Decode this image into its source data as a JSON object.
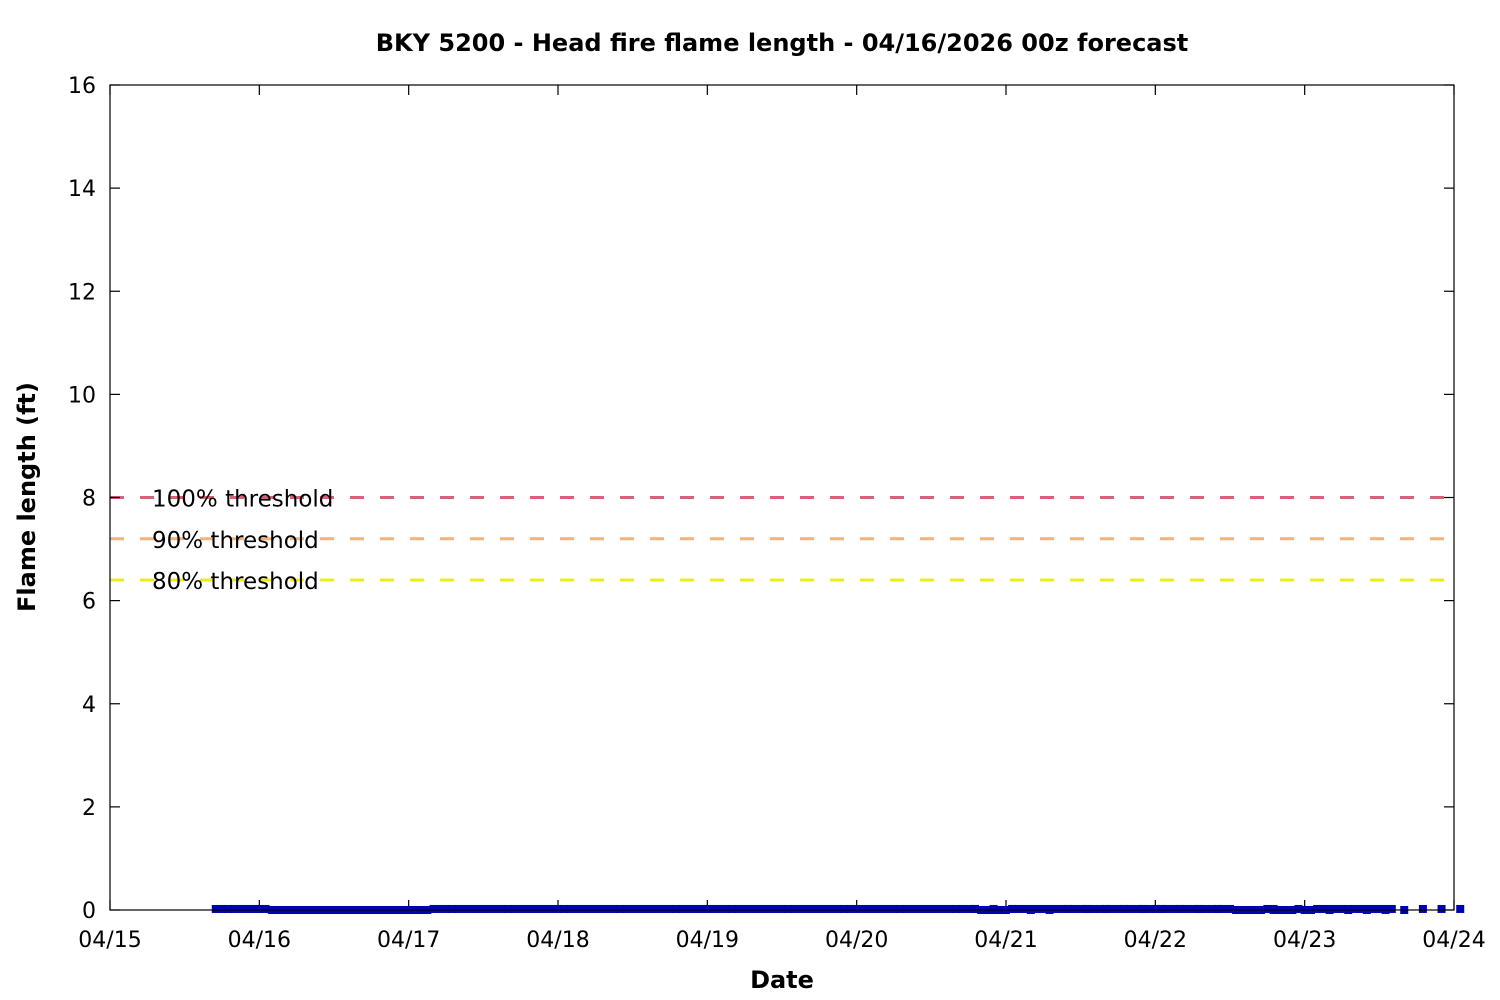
{
  "chart_data": {
    "type": "scatter",
    "title": "BKY 5200 - Head fire flame length - 04/16/2026 00z forecast",
    "xlabel": "Date",
    "ylabel": "Flame length (ft)",
    "x_type": "date",
    "xlim": [
      "2026-04-15",
      "2026-04-24"
    ],
    "ylim": [
      0,
      16
    ],
    "x_ticks": [
      "04/15",
      "04/16",
      "04/17",
      "04/18",
      "04/19",
      "04/20",
      "04/21",
      "04/22",
      "04/23",
      "04/24"
    ],
    "y_ticks": [
      0,
      2,
      4,
      6,
      8,
      10,
      12,
      14,
      16
    ],
    "grid": false,
    "colors": {
      "series": "#0000b3",
      "threshold_100": "#d95f7a",
      "threshold_90": "#f2b27c",
      "threshold_80": "#ecec1a"
    },
    "thresholds": [
      {
        "label": "100% threshold",
        "value": 8.0,
        "color": "#d95f7a"
      },
      {
        "label": "90% threshold",
        "value": 7.2,
        "color": "#f2b27c"
      },
      {
        "label": "80% threshold",
        "value": 6.4,
        "color": "#ecec1a"
      }
    ],
    "series": [
      {
        "hourly_start": "2026-04-15 17:00",
        "hourly_values": [
          0.02,
          0.02,
          0.02,
          0.02,
          0.02,
          0.02,
          0.02,
          0.02,
          0.02,
          0,
          0,
          0,
          0,
          0,
          0,
          0,
          0,
          0,
          0,
          0,
          0,
          0,
          0,
          0,
          0,
          0,
          0,
          0,
          0,
          0,
          0,
          0,
          0,
          0,
          0,
          0.02,
          0.02,
          0.02,
          0.02,
          0.02,
          0.02,
          0.02,
          0.02,
          0.02,
          0.02,
          0.02,
          0.02,
          0.02,
          0.02,
          0.02,
          0.02,
          0.02,
          0.02,
          0.02,
          0.02,
          0.02,
          0.02,
          0.02,
          0.02,
          0.02,
          0.02,
          0.02,
          0.02,
          0.02,
          0.02,
          0.02,
          0.02,
          0.02,
          0.02,
          0.02,
          0.02,
          0.02,
          0.02,
          0.02,
          0.02,
          0.02,
          0.02,
          0.02,
          0.02,
          0.02,
          0.02,
          0.02,
          0.02,
          0.02,
          0.02,
          0.02,
          0.02,
          0.02,
          0.02,
          0.02,
          0.02,
          0.02,
          0.02,
          0.02,
          0.02,
          0.02,
          0.02,
          0.02,
          0.02,
          0.02,
          0.02,
          0.02,
          0.02,
          0.02,
          0.02,
          0.02,
          0.02,
          0.02,
          0.02,
          0.02,
          0.02,
          0.02,
          0.02,
          0.02,
          0.02,
          0.02,
          0.02,
          0.02,
          0.02,
          0.02,
          0.02,
          0.02,
          0.02,
          0,
          0,
          0,
          0,
          0,
          0.02,
          0.02,
          0.02,
          0.02,
          0.02,
          0.02,
          0.02,
          0.02,
          0.02,
          0.02,
          0.02,
          0.02,
          0.02,
          0.02,
          0.02,
          0.02,
          0.02,
          0.02,
          0.02,
          0.02,
          0.02,
          0.02,
          0.02,
          0.02,
          0.02,
          0.02,
          0.02,
          0.02,
          0.02,
          0.02,
          0.02,
          0.02,
          0.02,
          0.02,
          0.02,
          0.02,
          0,
          0,
          0,
          0,
          0,
          0.02,
          0.02,
          0,
          0,
          0,
          0.02,
          0,
          0,
          0.02,
          0.02,
          0.02,
          0.02,
          0.02,
          0.02,
          0.02,
          0.02,
          0.02,
          0.02,
          0.02,
          0.02,
          0.02
        ],
        "three_hourly_start": "2026-04-20 19:00",
        "three_hourly_values": [
          0.02,
          0.02,
          0.02,
          0,
          0,
          0.02,
          0.02,
          0.02,
          0.02,
          0.02,
          0.02,
          0.02,
          0.02,
          0.02,
          0,
          0,
          0,
          0,
          0,
          0,
          0,
          0,
          0,
          0,
          0.02,
          0.02,
          0.02
        ]
      }
    ]
  }
}
